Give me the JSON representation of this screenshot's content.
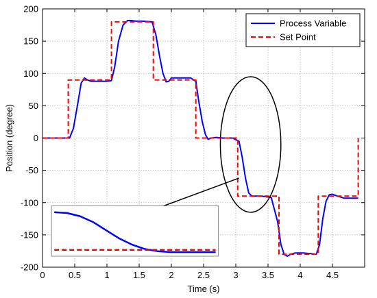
{
  "chart_data": {
    "type": "line",
    "title": "",
    "xlabel": "Time (s)",
    "ylabel": "Position (degree)",
    "xlim": [
      0,
      5
    ],
    "ylim": [
      -200,
      200
    ],
    "xticks": [
      0,
      0.5,
      1,
      1.5,
      2,
      2.5,
      3,
      3.5,
      4,
      4.5
    ],
    "yticks": [
      200,
      150,
      100,
      50,
      0,
      -50,
      -100,
      -150,
      -200
    ],
    "xtick_labels": [
      "0",
      "0.5",
      "1",
      "1.5",
      "2",
      "2.5",
      "3",
      "3.5",
      "4",
      "4.5"
    ],
    "ytick_labels": [
      "200",
      "150",
      "100",
      "50",
      "0",
      "-50",
      "-100",
      "-150",
      "-200"
    ],
    "grid": true,
    "legend_position": "top-right",
    "series": [
      {
        "name": "Process Variable",
        "color": "#0000ff",
        "style": "solid",
        "x": [
          0,
          0.42,
          0.48,
          0.55,
          0.6,
          0.65,
          0.7,
          0.75,
          0.82,
          1.0,
          1.07,
          1.12,
          1.18,
          1.25,
          1.32,
          1.38,
          1.45,
          1.55,
          1.7,
          1.76,
          1.82,
          1.87,
          1.92,
          1.96,
          2.0,
          2.08,
          2.15,
          2.3,
          2.38,
          2.42,
          2.48,
          2.53,
          2.57,
          2.62,
          2.7,
          2.8,
          2.95,
          3.05,
          3.1,
          3.15,
          3.2,
          3.25,
          3.3,
          3.4,
          3.55,
          3.65,
          3.7,
          3.75,
          3.8,
          3.85,
          3.92,
          4.05,
          4.25,
          4.3,
          4.35,
          4.4,
          4.45,
          4.5,
          4.58,
          4.68,
          4.9
        ],
        "y": [
          0,
          0,
          15,
          55,
          85,
          93,
          90,
          88,
          88,
          88,
          89,
          110,
          150,
          175,
          182,
          182,
          181,
          181,
          180,
          160,
          125,
          100,
          87,
          88,
          93,
          93,
          93,
          93,
          88,
          60,
          25,
          5,
          -2,
          0,
          1,
          0,
          0,
          -5,
          -30,
          -62,
          -85,
          -90,
          -90,
          -90,
          -92,
          -130,
          -165,
          -180,
          -183,
          -180,
          -178,
          -178,
          -180,
          -165,
          -125,
          -98,
          -88,
          -87,
          -90,
          -93,
          -93
        ]
      },
      {
        "name": "Set Point",
        "color": "#ff0000",
        "style": "dashed",
        "x": [
          0,
          0.4,
          0.4,
          1.07,
          1.07,
          1.72,
          1.72,
          2.38,
          2.38,
          3.03,
          3.03,
          3.67,
          3.67,
          4.28,
          4.28,
          4.9,
          4.9
        ],
        "y": [
          0,
          0,
          90,
          90,
          180,
          180,
          90,
          90,
          0,
          0,
          -90,
          -90,
          -180,
          -180,
          -90,
          -90,
          0
        ]
      }
    ],
    "annotations": [
      {
        "type": "zoom_circle",
        "center": [
          3.23,
          -10
        ],
        "radius_x": 0.47,
        "radius_y": 105
      },
      {
        "type": "arrow",
        "from": [
          3.05,
          -62
        ],
        "to": [
          1.53,
          -118
        ]
      },
      {
        "type": "inset",
        "x_range": [
          0.14,
          2.73
        ],
        "y_range": [
          -105,
          -183
        ],
        "data": {
          "process_variable": {
            "t": [
              0,
              0.08,
              0.16,
              0.24,
              0.32,
              0.4,
              0.48,
              0.56,
              0.64,
              0.72,
              0.8,
              1.0
            ],
            "v": [
              0.08,
              0.1,
              0.17,
              0.3,
              0.48,
              0.66,
              0.8,
              0.9,
              0.95,
              0.97,
              0.97,
              0.97
            ]
          },
          "set_point": {
            "t": [
              0,
              1.0
            ],
            "v": [
              0.92,
              0.92
            ]
          }
        }
      }
    ]
  }
}
